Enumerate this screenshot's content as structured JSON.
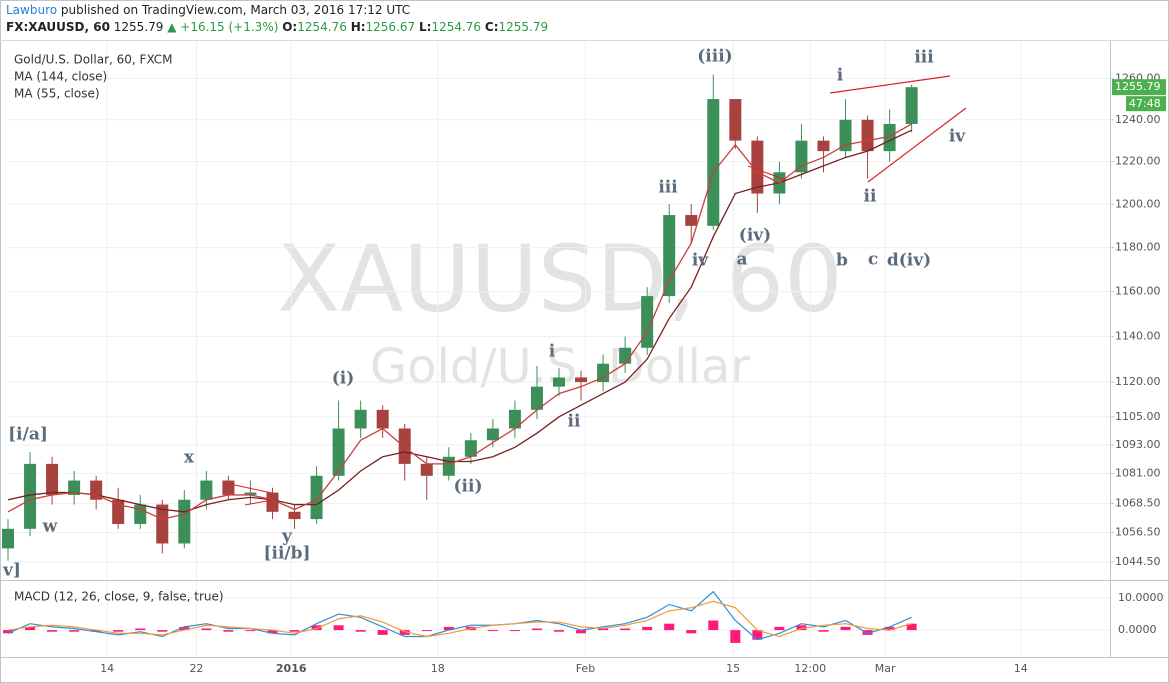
{
  "header": {
    "author": "Lawburo",
    "published": "published on TradingView.com, March 03, 2016 17:12 UTC",
    "symbol": "FX:XAUUSD, 60",
    "last": 1255.79,
    "change": "▲ +16.15 (+1.3%)",
    "ohlc": [
      {
        "label": "O:",
        "value": 1254.76
      },
      {
        "label": "H:",
        "value": 1256.67
      },
      {
        "label": "L:",
        "value": 1254.76
      },
      {
        "label": "C:",
        "value": 1255.79
      }
    ]
  },
  "chart_data": [
    {
      "type": "candlestick",
      "title": "Gold/U.S. Dollar, 60, FXCM",
      "watermark": [
        "XAUUSD, 60",
        "Gold/U.S. Dollar"
      ],
      "countdown": "47:48",
      "up_color": "#3d8f5a",
      "down_color": "#a8423e",
      "log": true,
      "grid": true,
      "x": [
        0,
        2,
        4,
        6,
        8,
        10,
        12,
        14,
        16,
        18,
        20,
        22,
        24,
        26,
        28,
        30,
        32,
        34,
        36,
        38,
        40,
        42,
        44,
        46,
        48,
        50,
        52,
        54,
        56,
        58,
        60,
        62,
        64,
        66,
        68,
        70,
        72,
        74,
        76,
        78,
        80,
        82
      ],
      "xlim": [
        0,
        100
      ],
      "xticks": [
        {
          "value": 9,
          "label": "14"
        },
        {
          "value": 17.1,
          "label": "22"
        },
        {
          "value": 25.7,
          "label": "2016"
        },
        {
          "value": 39,
          "label": "18"
        },
        {
          "value": 52.4,
          "label": "Feb"
        },
        {
          "value": 65.8,
          "label": "15"
        },
        {
          "value": 72.8,
          "label": "12:00"
        },
        {
          "value": 79.6,
          "label": "Mar"
        },
        {
          "value": 91.9,
          "label": "14"
        }
      ],
      "open": [
        1050,
        1058,
        1085,
        1072,
        1078,
        1070,
        1060,
        1068,
        1052,
        1070,
        1078,
        1072,
        1073,
        1065,
        1062,
        1080,
        1100,
        1108,
        1100,
        1085,
        1080,
        1088,
        1095,
        1100,
        1108,
        1118,
        1122,
        1120,
        1128,
        1135,
        1158,
        1195,
        1190,
        1250,
        1230,
        1205,
        1215,
        1230,
        1225,
        1240,
        1225,
        1238
      ],
      "high": [
        1062,
        1090,
        1088,
        1082,
        1080,
        1075,
        1072,
        1070,
        1074,
        1082,
        1080,
        1078,
        1075,
        1068,
        1084,
        1112,
        1112,
        1110,
        1102,
        1088,
        1092,
        1098,
        1104,
        1112,
        1127,
        1126,
        1125,
        1132,
        1140,
        1162,
        1200,
        1200,
        1262,
        1250,
        1232,
        1220,
        1238,
        1232,
        1250,
        1242,
        1245,
        1257
      ],
      "low": [
        1045,
        1055,
        1068,
        1068,
        1066,
        1058,
        1058,
        1048,
        1050,
        1066,
        1070,
        1068,
        1062,
        1058,
        1060,
        1078,
        1096,
        1096,
        1078,
        1070,
        1078,
        1085,
        1092,
        1096,
        1104,
        1114,
        1112,
        1116,
        1124,
        1132,
        1155,
        1182,
        1188,
        1226,
        1196,
        1200,
        1212,
        1215,
        1222,
        1212,
        1220,
        1234
      ],
      "close": [
        1058,
        1085,
        1072,
        1078,
        1070,
        1060,
        1068,
        1052,
        1070,
        1078,
        1072,
        1073,
        1065,
        1062,
        1080,
        1100,
        1108,
        1100,
        1085,
        1080,
        1088,
        1095,
        1100,
        1108,
        1118,
        1122,
        1120,
        1128,
        1135,
        1158,
        1195,
        1190,
        1250,
        1230,
        1205,
        1215,
        1230,
        1225,
        1240,
        1225,
        1238,
        1255.79
      ],
      "series": [
        {
          "name": "MA (144, close)",
          "color": "#7a1f1f",
          "values": [
            1070,
            1072,
            1073,
            1073,
            1072,
            1070,
            1068,
            1066,
            1065,
            1068,
            1070,
            1071,
            1070,
            1068,
            1068,
            1074,
            1082,
            1088,
            1090,
            1088,
            1086,
            1086,
            1088,
            1092,
            1098,
            1105,
            1110,
            1115,
            1120,
            1130,
            1148,
            1162,
            1185,
            1205,
            1208,
            1210,
            1214,
            1218,
            1222,
            1225,
            1230,
            1235
          ]
        },
        {
          "name": "MA (55, close)",
          "color": "#c8403a",
          "values": [
            1065,
            1070,
            1072,
            1073,
            1072,
            1068,
            1066,
            1062,
            1064,
            1070,
            1072,
            1072,
            1070,
            1066,
            1070,
            1082,
            1095,
            1100,
            1092,
            1085,
            1085,
            1088,
            1094,
            1100,
            1108,
            1115,
            1118,
            1122,
            1128,
            1142,
            1165,
            1182,
            1215,
            1228,
            1215,
            1210,
            1218,
            1222,
            1228,
            1230,
            1232,
            1238
          ]
        }
      ],
      "ylim": [
        1038,
        1277
      ],
      "yticks": [
        {
          "value": 1044.5,
          "label": "1044.50"
        },
        {
          "value": 1056.5,
          "label": "1056.50"
        },
        {
          "value": 1068.5,
          "label": "1068.50"
        },
        {
          "value": 1081,
          "label": "1081.00"
        },
        {
          "value": 1093,
          "label": "1093.00"
        },
        {
          "value": 1105,
          "label": "1105.00"
        },
        {
          "value": 1120,
          "label": "1120.00"
        },
        {
          "value": 1140,
          "label": "1140.00"
        },
        {
          "value": 1160,
          "label": "1160.00"
        },
        {
          "value": 1180,
          "label": "1180.00"
        },
        {
          "value": 1200,
          "label": "1200.00"
        },
        {
          "value": 1220,
          "label": "1220.00"
        },
        {
          "value": 1240,
          "label": "1240.00"
        },
        {
          "value": 1260,
          "label": "1260.00"
        }
      ],
      "annotations": [
        "[i/a]",
        "w",
        "x",
        "y",
        "[ii/b]",
        "v]",
        "(i)",
        "(ii)",
        "i",
        "ii",
        "iii",
        "iv",
        "(iii)",
        "(iv)",
        "a",
        "b",
        "c",
        "d(iv)",
        "i",
        "ii",
        "iii",
        "iv"
      ]
    },
    {
      "type": "macd",
      "title": "MACD (12, 26, close, 9, false, true)",
      "macd": {
        "color": "#2f8fd8",
        "values": [
          -1,
          2,
          1,
          0.5,
          -0.5,
          -1.5,
          -0.5,
          -2,
          1,
          2,
          0.5,
          0.5,
          -1,
          -1.5,
          2,
          5,
          4,
          1,
          -2,
          -2,
          0,
          1.5,
          1.5,
          2,
          3,
          2,
          0,
          1,
          2,
          4,
          8,
          6,
          12,
          3,
          -3,
          -1,
          2,
          1,
          3,
          -1,
          1,
          4
        ]
      },
      "signal": {
        "color": "#f29a3a",
        "values": [
          0,
          1,
          1.5,
          1,
          0,
          -1,
          -1,
          -1.5,
          0,
          1.5,
          1,
          0.5,
          0,
          -1,
          0.5,
          3.5,
          4.5,
          2.5,
          -0.5,
          -2,
          -1,
          0.5,
          1.5,
          2,
          2.5,
          2.5,
          1,
          0.5,
          1.5,
          3,
          6,
          7,
          9,
          7,
          0,
          -2,
          0.5,
          1.5,
          2,
          0.5,
          0,
          2
        ]
      },
      "histogram": {
        "color": "#ff1a7a",
        "values": [
          -1,
          1,
          -0.5,
          -0.5,
          -0.5,
          -0.5,
          0.5,
          -0.5,
          1,
          0.5,
          -0.5,
          0,
          -1,
          -0.5,
          1.5,
          1.5,
          -0.5,
          -1.5,
          -1.5,
          0,
          1,
          1,
          0,
          0,
          0.5,
          -0.5,
          -1,
          0.5,
          0.5,
          1,
          2,
          -1,
          3,
          -4,
          -3,
          1,
          1.5,
          -0.5,
          1,
          -1.5,
          1,
          2
        ]
      },
      "ylim": [
        -8.4,
        14.7
      ],
      "yticks": [
        {
          "value": 0,
          "label": "0.0000"
        },
        {
          "value": 10,
          "label": "10.0000"
        }
      ]
    }
  ]
}
